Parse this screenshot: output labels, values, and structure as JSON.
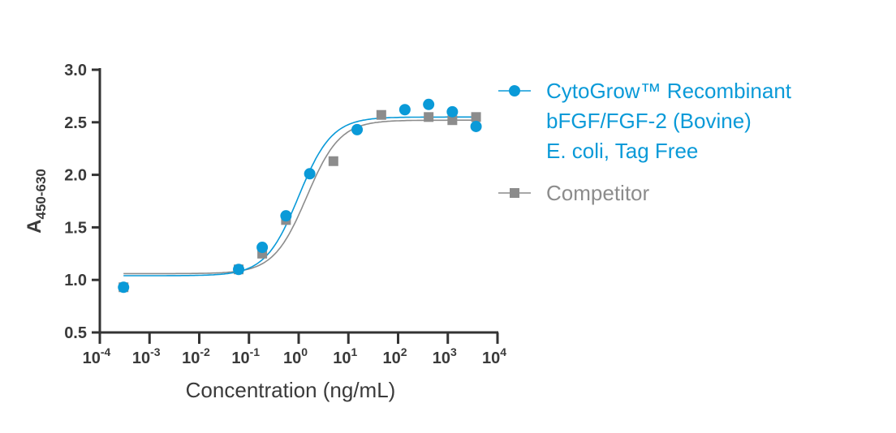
{
  "chart_data": {
    "type": "scatter",
    "xlabel": "Concentration (ng/mL)",
    "ylabel": "A",
    "ylabel_subscript": "450-630",
    "x_scale": "log",
    "xlim": [
      0.0001,
      10000
    ],
    "ylim": [
      0.5,
      3.0
    ],
    "x_ticks": [
      {
        "base": "10",
        "exp": "-4"
      },
      {
        "base": "10",
        "exp": "-3"
      },
      {
        "base": "10",
        "exp": "-2"
      },
      {
        "base": "10",
        "exp": "-1"
      },
      {
        "base": "10",
        "exp": "0"
      },
      {
        "base": "10",
        "exp": "1"
      },
      {
        "base": "10",
        "exp": "2"
      },
      {
        "base": "10",
        "exp": "3"
      },
      {
        "base": "10",
        "exp": "4"
      }
    ],
    "y_ticks": [
      "3.0",
      "2.5",
      "2.0",
      "1.5",
      "1.0",
      "0.5"
    ],
    "grid": false,
    "legend_position": "right",
    "series": [
      {
        "name": "CytoGrow™ Recombinant bFGF/FGF-2 (Bovine) E. coli, Tag Free",
        "legend_lines": [
          "CytoGrow™ Recombinant",
          "bFGF/FGF-2 (Bovine)",
          "E. coli, Tag Free"
        ],
        "color": "#0a9ad8",
        "marker": "circle",
        "x": [
          0.0003,
          0.062,
          0.185,
          0.556,
          1.67,
          15,
          137,
          412,
          1235,
          3704
        ],
        "y": [
          0.93,
          1.1,
          1.31,
          1.61,
          2.01,
          2.43,
          2.62,
          2.67,
          2.6,
          2.46
        ],
        "fit": {
          "bottom": 1.04,
          "top": 2.55,
          "ec50": 1.0,
          "hill": 1.3
        }
      },
      {
        "name": "Competitor",
        "legend_lines": [
          "Competitor"
        ],
        "color": "#8c8c8c",
        "marker": "square",
        "x": [
          0.0003,
          0.062,
          0.185,
          0.556,
          5,
          46,
          412,
          1235,
          3704
        ],
        "y": [
          0.93,
          1.1,
          1.25,
          1.57,
          2.13,
          2.57,
          2.55,
          2.52,
          2.55
        ],
        "fit": {
          "bottom": 1.06,
          "top": 2.52,
          "ec50": 1.45,
          "hill": 1.3
        }
      }
    ]
  }
}
